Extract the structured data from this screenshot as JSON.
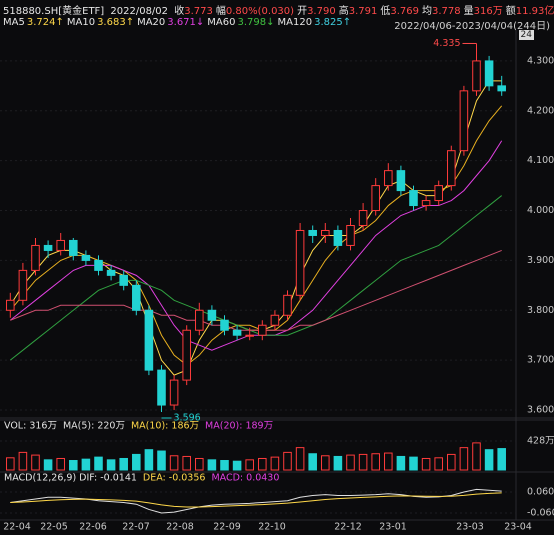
{
  "header": {
    "code": "518880.SH[黄金ETF]",
    "date": "2022/08/02",
    "quote": [
      {
        "label": "收",
        "value": "3.773"
      },
      {
        "label": "幅",
        "value": "0.80%(0.030)"
      },
      {
        "label": "开",
        "value": "3.790"
      },
      {
        "label": "高",
        "value": "3.791"
      },
      {
        "label": "低",
        "value": "3.769"
      },
      {
        "label": "均",
        "value": "3.778"
      },
      {
        "label": "量",
        "value": "316万"
      },
      {
        "label": "额",
        "value": "11.93亿"
      }
    ],
    "ma_legend": [
      {
        "name": "MA5",
        "value": "3.724↑",
        "color": "#ffd84a"
      },
      {
        "name": "MA10",
        "value": "3.683↑",
        "color": "#ffd84a"
      },
      {
        "name": "MA20",
        "value": "3.671↓",
        "color": "#e040e0"
      },
      {
        "name": "MA60",
        "value": "3.798↓",
        "color": "#40c040"
      },
      {
        "name": "MA120",
        "value": "3.825↑",
        "color": "#40d0e0"
      }
    ],
    "range": "2022/04/06-2023/04/04(244日)",
    "badge": "24"
  },
  "xaxis_labels": [
    "22-04",
    "22-05",
    "22-06",
    "22-07",
    "22-08",
    "22-09",
    "22-10",
    "22-12",
    "23-01",
    "23-03",
    "23-04"
  ],
  "chart_data": [
    {
      "type": "candlestick",
      "up_color": "#ff3b3b",
      "down_color": "#22d3d3",
      "ylim": [
        3.584,
        4.362
      ],
      "yticks": [
        {
          "value": 4.3,
          "label": "4.300"
        },
        {
          "value": 4.2,
          "label": "4.200"
        },
        {
          "value": 4.1,
          "label": "4.100"
        },
        {
          "value": 4.0,
          "label": "4.000"
        },
        {
          "value": 3.9,
          "label": "3.900"
        },
        {
          "value": 3.8,
          "label": "3.800"
        },
        {
          "value": 3.7,
          "label": "3.700"
        },
        {
          "value": 3.6,
          "label": "3.600"
        }
      ],
      "high_label": "4.335",
      "low_label": "3.596",
      "open": [
        3.8,
        3.82,
        3.88,
        3.93,
        3.92,
        3.94,
        3.91,
        3.9,
        3.88,
        3.87,
        3.85,
        3.8,
        3.68,
        3.61,
        3.66,
        3.76,
        3.8,
        3.78,
        3.76,
        3.75,
        3.75,
        3.77,
        3.79,
        3.83,
        3.96,
        3.95,
        3.96,
        3.93,
        3.97,
        4.0,
        4.05,
        4.08,
        4.04,
        4.01,
        4.02,
        4.05,
        4.12,
        4.24,
        4.3,
        4.25
      ],
      "high": [
        3.835,
        3.895,
        3.945,
        3.94,
        3.955,
        3.945,
        3.92,
        3.91,
        3.89,
        3.88,
        3.86,
        3.81,
        3.69,
        3.67,
        3.77,
        3.815,
        3.81,
        3.79,
        3.77,
        3.765,
        3.78,
        3.8,
        3.84,
        3.975,
        3.97,
        3.975,
        3.97,
        3.985,
        4.015,
        4.065,
        4.095,
        4.09,
        4.05,
        4.03,
        4.06,
        4.13,
        4.25,
        4.335,
        4.31,
        4.27
      ],
      "low": [
        3.785,
        3.81,
        3.87,
        3.905,
        3.91,
        3.9,
        3.89,
        3.87,
        3.86,
        3.84,
        3.79,
        3.67,
        3.596,
        3.6,
        3.65,
        3.75,
        3.77,
        3.75,
        3.74,
        3.74,
        3.74,
        3.76,
        3.78,
        3.82,
        3.935,
        3.935,
        3.92,
        3.92,
        3.96,
        3.99,
        4.04,
        4.03,
        4.0,
        4.0,
        4.01,
        4.04,
        4.11,
        4.23,
        4.24,
        4.23
      ],
      "close": [
        3.82,
        3.88,
        3.93,
        3.92,
        3.94,
        3.91,
        3.9,
        3.88,
        3.87,
        3.85,
        3.8,
        3.68,
        3.61,
        3.66,
        3.76,
        3.8,
        3.78,
        3.76,
        3.75,
        3.75,
        3.77,
        3.79,
        3.83,
        3.96,
        3.95,
        3.96,
        3.93,
        3.97,
        4.0,
        4.05,
        4.08,
        4.04,
        4.01,
        4.02,
        4.05,
        4.12,
        4.24,
        4.3,
        4.25,
        4.24
      ],
      "series": [
        {
          "name": "MA5",
          "color": "#ffd84a",
          "values": [
            3.81,
            3.85,
            3.88,
            3.91,
            3.92,
            3.92,
            3.91,
            3.9,
            3.88,
            3.87,
            3.84,
            3.77,
            3.7,
            3.67,
            3.68,
            3.74,
            3.78,
            3.78,
            3.77,
            3.76,
            3.76,
            3.77,
            3.8,
            3.87,
            3.92,
            3.95,
            3.95,
            3.95,
            3.97,
            4.01,
            4.05,
            4.06,
            4.04,
            4.03,
            4.03,
            4.06,
            4.14,
            4.22,
            4.26,
            4.26
          ]
        },
        {
          "name": "MA10",
          "color": "#e8b020",
          "values": [
            3.8,
            3.83,
            3.86,
            3.88,
            3.9,
            3.91,
            3.91,
            3.9,
            3.89,
            3.88,
            3.86,
            3.81,
            3.75,
            3.71,
            3.69,
            3.71,
            3.74,
            3.76,
            3.77,
            3.77,
            3.76,
            3.76,
            3.78,
            3.82,
            3.86,
            3.9,
            3.93,
            3.95,
            3.96,
            3.98,
            4.01,
            4.03,
            4.04,
            4.04,
            4.04,
            4.05,
            4.09,
            4.14,
            4.18,
            4.21
          ]
        },
        {
          "name": "MA20",
          "color": "#e040e0",
          "values": [
            3.78,
            3.8,
            3.82,
            3.84,
            3.86,
            3.88,
            3.89,
            3.89,
            3.89,
            3.88,
            3.87,
            3.85,
            3.81,
            3.77,
            3.74,
            3.73,
            3.72,
            3.73,
            3.74,
            3.75,
            3.75,
            3.75,
            3.76,
            3.78,
            3.8,
            3.83,
            3.86,
            3.89,
            3.92,
            3.95,
            3.97,
            3.99,
            4.0,
            4.01,
            4.01,
            4.02,
            4.04,
            4.07,
            4.1,
            4.14
          ]
        },
        {
          "name": "MA60",
          "color": "#30a040",
          "values": [
            3.7,
            3.72,
            3.74,
            3.76,
            3.78,
            3.8,
            3.82,
            3.84,
            3.85,
            3.86,
            3.86,
            3.85,
            3.84,
            3.82,
            3.81,
            3.8,
            3.79,
            3.78,
            3.77,
            3.76,
            3.75,
            3.75,
            3.75,
            3.76,
            3.77,
            3.78,
            3.8,
            3.82,
            3.84,
            3.86,
            3.88,
            3.9,
            3.91,
            3.92,
            3.93,
            3.95,
            3.97,
            3.99,
            4.01,
            4.03
          ]
        },
        {
          "name": "MA120",
          "color": "#d05070",
          "values": [
            3.78,
            3.79,
            3.8,
            3.8,
            3.81,
            3.81,
            3.81,
            3.81,
            3.81,
            3.81,
            3.8,
            3.8,
            3.79,
            3.79,
            3.78,
            3.78,
            3.77,
            3.77,
            3.76,
            3.76,
            3.76,
            3.76,
            3.76,
            3.77,
            3.77,
            3.78,
            3.79,
            3.8,
            3.81,
            3.82,
            3.83,
            3.84,
            3.85,
            3.86,
            3.87,
            3.88,
            3.89,
            3.9,
            3.91,
            3.92
          ]
        }
      ]
    },
    {
      "type": "bar",
      "title": "VOL: 316万",
      "legend": [
        {
          "text": "MA(5): 220万",
          "color": "#e0e0e0"
        },
        {
          "text": "MA(10): 186万",
          "color": "#ffd84a"
        },
        {
          "text": "MA(20): 189万",
          "color": "#e040e0"
        }
      ],
      "ylim": [
        0,
        546
      ],
      "yticks": [
        {
          "value": 428,
          "label": "428万"
        }
      ],
      "values": [
        180,
        260,
        220,
        150,
        170,
        140,
        160,
        190,
        150,
        170,
        230,
        300,
        280,
        210,
        200,
        170,
        150,
        140,
        130,
        150,
        170,
        190,
        260,
        330,
        240,
        210,
        200,
        220,
        230,
        240,
        250,
        200,
        190,
        170,
        180,
        230,
        330,
        400,
        300,
        316
      ]
    },
    {
      "type": "line",
      "title": "MACD(12,26,9) DIF: -0.0141",
      "legend": [
        {
          "text": "DEA: -0.0356",
          "color": "#ffd84a"
        },
        {
          "text": "MACD: 0.0430",
          "color": "#e040e0"
        }
      ],
      "ylim": [
        -0.089,
        0.106
      ],
      "yticks": [
        {
          "value": 0.06,
          "label": "0.0600"
        },
        {
          "value": -0.06,
          "label": "-0.060"
        }
      ],
      "series": [
        {
          "name": "DIF",
          "color": "#e0e0e0",
          "values": [
            0.0,
            0.01,
            0.02,
            0.03,
            0.03,
            0.025,
            0.02,
            0.01,
            0.005,
            0.0,
            -0.01,
            -0.04,
            -0.06,
            -0.055,
            -0.04,
            -0.025,
            -0.015,
            -0.01,
            -0.008,
            -0.005,
            0.0,
            0.005,
            0.01,
            0.03,
            0.04,
            0.045,
            0.04,
            0.04,
            0.042,
            0.045,
            0.05,
            0.045,
            0.035,
            0.03,
            0.032,
            0.04,
            0.06,
            0.075,
            0.07,
            0.065
          ]
        },
        {
          "name": "DEA",
          "color": "#ffd84a",
          "values": [
            0.0,
            0.003,
            0.007,
            0.012,
            0.016,
            0.018,
            0.019,
            0.017,
            0.015,
            0.012,
            0.008,
            -0.002,
            -0.014,
            -0.022,
            -0.026,
            -0.026,
            -0.024,
            -0.021,
            -0.018,
            -0.015,
            -0.012,
            -0.008,
            -0.004,
            0.003,
            0.01,
            0.017,
            0.022,
            0.026,
            0.029,
            0.032,
            0.036,
            0.038,
            0.037,
            0.036,
            0.035,
            0.036,
            0.041,
            0.048,
            0.052,
            0.055
          ]
        }
      ]
    }
  ]
}
